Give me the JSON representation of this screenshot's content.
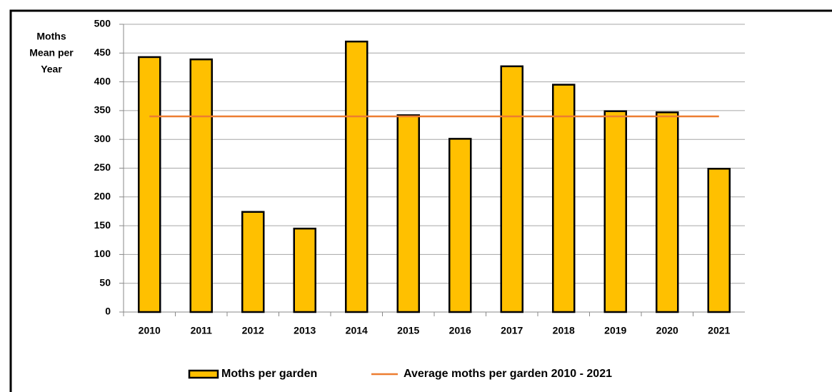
{
  "chart_data": {
    "type": "bar",
    "y_label": [
      "Moths",
      "Mean per",
      "Year"
    ],
    "categories": [
      "2010",
      "2011",
      "2012",
      "2013",
      "2014",
      "2015",
      "2016",
      "2017",
      "2018",
      "2019",
      "2020",
      "2021"
    ],
    "series": [
      {
        "name": "Moths per garden",
        "type": "bar",
        "color": "#ffc000",
        "values": [
          443,
          439,
          174,
          145,
          470,
          342,
          301,
          427,
          395,
          349,
          347,
          249
        ]
      },
      {
        "name": "Average moths per garden 2010 - 2021",
        "type": "line",
        "color": "#ed7d31",
        "values": [
          340,
          340,
          340,
          340,
          340,
          340,
          340,
          340,
          340,
          340,
          340,
          340
        ]
      }
    ],
    "ylim": [
      0,
      500
    ],
    "yticks": [
      0,
      50,
      100,
      150,
      200,
      250,
      300,
      350,
      400,
      450,
      500
    ],
    "grid": true,
    "legend": "bottom"
  }
}
